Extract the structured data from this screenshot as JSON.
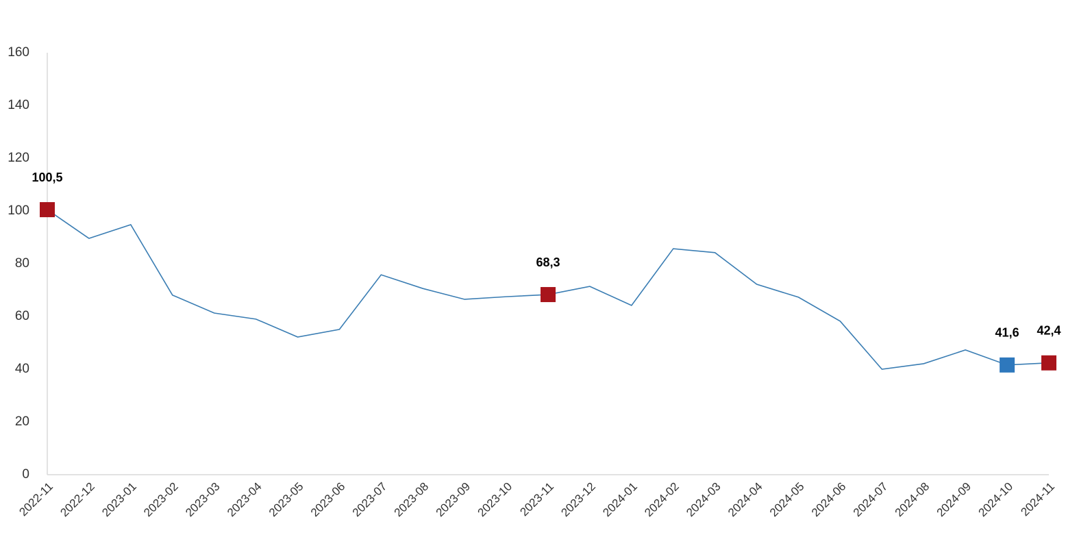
{
  "chart_data": {
    "type": "line",
    "categories": [
      "2022-11",
      "2022-12",
      "2023-01",
      "2023-02",
      "2023-03",
      "2023-04",
      "2023-05",
      "2023-06",
      "2023-07",
      "2023-08",
      "2023-09",
      "2023-10",
      "2023-11",
      "2023-12",
      "2024-01",
      "2024-02",
      "2024-03",
      "2024-04",
      "2024-05",
      "2024-06",
      "2024-07",
      "2024-08",
      "2024-09",
      "2024-10",
      "2024-11"
    ],
    "values": [
      100.5,
      89.6,
      94.8,
      68.1,
      61.3,
      59.0,
      52.2,
      55.1,
      75.8,
      70.6,
      66.5,
      67.5,
      68.3,
      71.4,
      64.2,
      85.7,
      84.2,
      72.2,
      67.3,
      58.2,
      40.0,
      42.1,
      47.3,
      41.6,
      42.4
    ],
    "value_labels": [
      "100,5",
      null,
      null,
      null,
      null,
      null,
      null,
      null,
      null,
      null,
      null,
      null,
      "68,3",
      null,
      null,
      null,
      null,
      null,
      null,
      null,
      null,
      null,
      null,
      "41,6",
      "42,4"
    ],
    "marker_colors": [
      "#a8141b",
      null,
      null,
      null,
      null,
      null,
      null,
      null,
      null,
      null,
      null,
      null,
      "#a8141b",
      null,
      null,
      null,
      null,
      null,
      null,
      null,
      null,
      null,
      null,
      "#2e78bd",
      "#a8141b"
    ],
    "color": "#3a7db3",
    "ylim": [
      0,
      160
    ],
    "yticks": [
      0,
      20,
      40,
      60,
      80,
      100,
      120,
      140,
      160
    ],
    "grid": false
  }
}
